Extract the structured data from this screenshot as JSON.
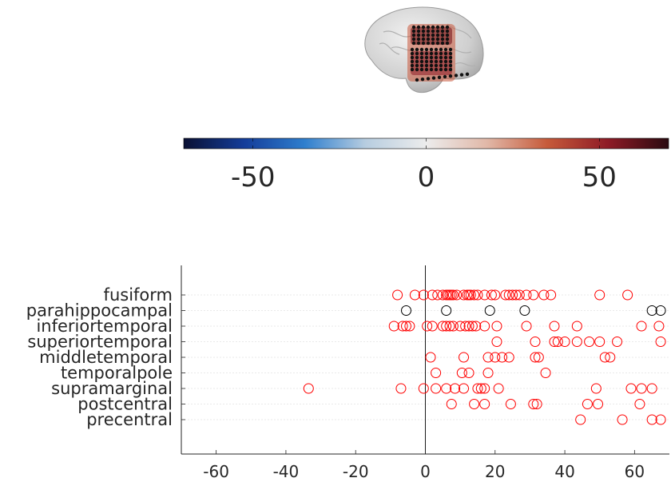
{
  "colorbar": {
    "min": -70,
    "max": 70,
    "ticks": [
      -50,
      0,
      50
    ],
    "colors": [
      "#0a1033",
      "#143d9a",
      "#2f7fce",
      "#b7cde0",
      "#ececec",
      "#e1b8a8",
      "#c65a3a",
      "#8e1b26",
      "#2a0a10"
    ]
  },
  "chart_data": {
    "type": "scatter",
    "xlim": [
      -70,
      70
    ],
    "x_ticks": [
      -60,
      -40,
      -20,
      0,
      20,
      40,
      60
    ],
    "categories": [
      "fusiform",
      "parahippocampal",
      "inferiortemporal",
      "superiortemporal",
      "middletemporal",
      "temporalpole",
      "supramarginal",
      "postcentral",
      "precentral"
    ],
    "grid": true,
    "vertical_line_at": 0,
    "series": [
      {
        "color": "#ff0000",
        "points": [
          [
            -8,
            "fusiform"
          ],
          [
            -3,
            "fusiform"
          ],
          [
            -0.5,
            "fusiform"
          ],
          [
            2,
            "fusiform"
          ],
          [
            3.5,
            "fusiform"
          ],
          [
            5,
            "fusiform"
          ],
          [
            6,
            "fusiform"
          ],
          [
            6.5,
            "fusiform"
          ],
          [
            7,
            "fusiform"
          ],
          [
            7.5,
            "fusiform"
          ],
          [
            8,
            "fusiform"
          ],
          [
            9,
            "fusiform"
          ],
          [
            11,
            "fusiform"
          ],
          [
            12,
            "fusiform"
          ],
          [
            12.5,
            "fusiform"
          ],
          [
            13,
            "fusiform"
          ],
          [
            14,
            "fusiform"
          ],
          [
            15,
            "fusiform"
          ],
          [
            17,
            "fusiform"
          ],
          [
            19,
            "fusiform"
          ],
          [
            20,
            "fusiform"
          ],
          [
            23,
            "fusiform"
          ],
          [
            24,
            "fusiform"
          ],
          [
            25,
            "fusiform"
          ],
          [
            26,
            "fusiform"
          ],
          [
            27,
            "fusiform"
          ],
          [
            29,
            "fusiform"
          ],
          [
            31,
            "fusiform"
          ],
          [
            34,
            "fusiform"
          ],
          [
            36,
            "fusiform"
          ],
          [
            50,
            "fusiform"
          ],
          [
            58,
            "fusiform"
          ],
          [
            -9,
            "inferiortemporal"
          ],
          [
            -6.5,
            "inferiortemporal"
          ],
          [
            -5.5,
            "inferiortemporal"
          ],
          [
            -4.5,
            "inferiortemporal"
          ],
          [
            0.5,
            "inferiortemporal"
          ],
          [
            2,
            "inferiortemporal"
          ],
          [
            5,
            "inferiortemporal"
          ],
          [
            6,
            "inferiortemporal"
          ],
          [
            7,
            "inferiortemporal"
          ],
          [
            8,
            "inferiortemporal"
          ],
          [
            10,
            "inferiortemporal"
          ],
          [
            11.5,
            "inferiortemporal"
          ],
          [
            12.5,
            "inferiortemporal"
          ],
          [
            13.5,
            "inferiortemporal"
          ],
          [
            14.5,
            "inferiortemporal"
          ],
          [
            17,
            "inferiortemporal"
          ],
          [
            20.5,
            "inferiortemporal"
          ],
          [
            29,
            "inferiortemporal"
          ],
          [
            37,
            "inferiortemporal"
          ],
          [
            43.5,
            "inferiortemporal"
          ],
          [
            62,
            "inferiortemporal"
          ],
          [
            67,
            "inferiortemporal"
          ],
          [
            20.5,
            "superiortemporal"
          ],
          [
            31.5,
            "superiortemporal"
          ],
          [
            37,
            "superiortemporal"
          ],
          [
            43.5,
            "superiortemporal"
          ],
          [
            47,
            "superiortemporal"
          ],
          [
            50,
            "superiortemporal"
          ],
          [
            55,
            "superiortemporal"
          ],
          [
            67.5,
            "superiortemporal"
          ],
          [
            38,
            "superiortemporal"
          ],
          [
            40,
            "superiortemporal"
          ],
          [
            1.5,
            "middletemporal"
          ],
          [
            11,
            "middletemporal"
          ],
          [
            18,
            "middletemporal"
          ],
          [
            20,
            "middletemporal"
          ],
          [
            22,
            "middletemporal"
          ],
          [
            24,
            "middletemporal"
          ],
          [
            31.5,
            "middletemporal"
          ],
          [
            32.5,
            "middletemporal"
          ],
          [
            51.5,
            "middletemporal"
          ],
          [
            53,
            "middletemporal"
          ],
          [
            3,
            "temporalpole"
          ],
          [
            10.5,
            "temporalpole"
          ],
          [
            12.5,
            "temporalpole"
          ],
          [
            18,
            "temporalpole"
          ],
          [
            34.5,
            "temporalpole"
          ],
          [
            -33.5,
            "supramarginal"
          ],
          [
            -7,
            "supramarginal"
          ],
          [
            -0.5,
            "supramarginal"
          ],
          [
            3,
            "supramarginal"
          ],
          [
            6,
            "supramarginal"
          ],
          [
            8.5,
            "supramarginal"
          ],
          [
            11,
            "supramarginal"
          ],
          [
            15,
            "supramarginal"
          ],
          [
            16,
            "supramarginal"
          ],
          [
            17,
            "supramarginal"
          ],
          [
            21,
            "supramarginal"
          ],
          [
            49,
            "supramarginal"
          ],
          [
            59,
            "supramarginal"
          ],
          [
            62,
            "supramarginal"
          ],
          [
            65,
            "supramarginal"
          ],
          [
            7.5,
            "postcentral"
          ],
          [
            14,
            "postcentral"
          ],
          [
            17,
            "postcentral"
          ],
          [
            24.5,
            "postcentral"
          ],
          [
            31,
            "postcentral"
          ],
          [
            32,
            "postcentral"
          ],
          [
            46.5,
            "postcentral"
          ],
          [
            49.5,
            "postcentral"
          ],
          [
            61.5,
            "postcentral"
          ],
          [
            44.5,
            "precentral"
          ],
          [
            56.5,
            "precentral"
          ],
          [
            65,
            "precentral"
          ],
          [
            67.5,
            "precentral"
          ]
        ]
      },
      {
        "color": "#000000",
        "points": [
          [
            -5.5,
            "parahippocampal"
          ],
          [
            6,
            "parahippocampal"
          ],
          [
            18.5,
            "parahippocampal"
          ],
          [
            28.5,
            "parahippocampal"
          ],
          [
            65,
            "parahippocampal"
          ],
          [
            67.5,
            "parahippocampal"
          ]
        ]
      }
    ]
  }
}
